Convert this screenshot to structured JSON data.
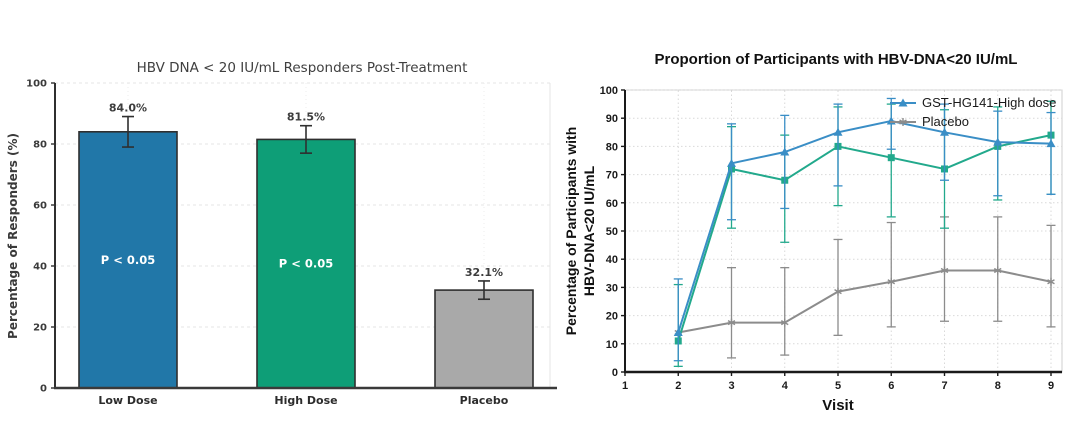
{
  "chart_data": [
    {
      "type": "bar",
      "title": "HBV DNA < 20 IU/mL Responders Post-Treatment",
      "ylabel": "Percentage of Responders (%)",
      "categories": [
        "Low Dose",
        "High Dose",
        "Placebo"
      ],
      "values": [
        84.0,
        81.5,
        32.1
      ],
      "value_labels": [
        "84.0%",
        "81.5%",
        "32.1%"
      ],
      "bar_annotations": [
        "P < 0.05",
        "P < 0.05",
        ""
      ],
      "error_low": [
        5,
        4.5,
        3
      ],
      "error_high": [
        5,
        4.5,
        3
      ],
      "bar_colors": [
        "#2177a8",
        "#0e9e77",
        "#a9a9a9"
      ],
      "bar_edge_color": "#2f2f2f",
      "error_color": "#2f2f2f",
      "ylim": [
        0,
        100
      ],
      "yticks": [
        0,
        20,
        40,
        60,
        80,
        100
      ],
      "grid": true
    },
    {
      "type": "line",
      "title": "Proportion of Participants with HBV-DNA<20 IU/mL",
      "xlabel": "Visit",
      "ylabel": "Percentage of Participants with HBV-DNA<20 IU/mL",
      "ylabel_lines": [
        "Percentage of Participants with",
        "HBV-DNA<20 IU/mL"
      ],
      "xlim": [
        1,
        9
      ],
      "ylim": [
        0,
        100
      ],
      "xticks": [
        1,
        2,
        3,
        4,
        5,
        6,
        7,
        8,
        9
      ],
      "yticks": [
        0,
        10,
        20,
        30,
        40,
        50,
        60,
        70,
        80,
        90,
        100
      ],
      "grid": true,
      "legend_position": "top-right",
      "legend": [
        "GST-HG141-High dose",
        "Placebo"
      ],
      "series": [
        {
          "name": "Placebo",
          "color": "#8c8c8c",
          "marker": "star",
          "in_legend": true,
          "legend_slot": 1,
          "x": [
            2,
            3,
            4,
            5,
            6,
            7,
            8,
            9
          ],
          "y": [
            14,
            17.5,
            17.5,
            28.5,
            32,
            36,
            36,
            32
          ],
          "err_low": [
            0,
            12.5,
            11.5,
            15.5,
            16,
            18,
            18,
            16
          ],
          "err_high": [
            0,
            19.5,
            19.5,
            18.5,
            21,
            19,
            19,
            20
          ]
        },
        {
          "name": "unlabeled-green-series",
          "color": "#22a98c",
          "marker": "square",
          "in_legend": false,
          "legend_slot": -1,
          "x": [
            2,
            3,
            4,
            5,
            6,
            7,
            8,
            9
          ],
          "y": [
            11,
            72,
            68,
            80,
            76,
            72,
            80,
            84
          ],
          "err_low": [
            9,
            21,
            22,
            21,
            21,
            21,
            19,
            21
          ],
          "err_high": [
            20,
            15,
            16,
            14,
            19,
            21,
            14,
            12
          ]
        },
        {
          "name": "GST-HG141-High dose",
          "color": "#3a8ec6",
          "marker": "triangle",
          "in_legend": true,
          "legend_slot": 0,
          "x": [
            2,
            3,
            4,
            5,
            6,
            7,
            8,
            9
          ],
          "y": [
            14,
            74,
            78,
            85,
            89,
            85,
            81.5,
            81
          ],
          "err_low": [
            10,
            20,
            20,
            19,
            10,
            17,
            19,
            18
          ],
          "err_high": [
            19,
            14,
            13,
            10,
            8,
            10,
            11,
            11
          ]
        }
      ]
    }
  ]
}
